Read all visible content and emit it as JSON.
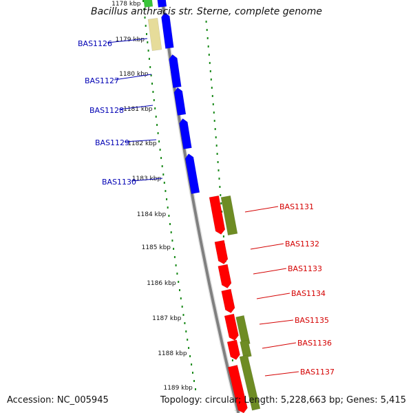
{
  "title": "Bacillus anthracis str. Sterne, complete genome",
  "accession": "Accession: NC_005945",
  "summary": "Topology: circular; Length: 5,228,663 bp; Genes: 5,415",
  "colors": {
    "backbone": "#808080",
    "forward_cds": "#0000ff",
    "reverse_cds": "#ff0000",
    "forward_other": "#e6dc9a",
    "reverse_other": "#6e8c24",
    "top_gene": "#38c438",
    "tick_ring": "#1a8a1a",
    "forward_label": "#0000b4",
    "reverse_label": "#d40000"
  },
  "ticks": [
    "1178 kbp",
    "1179 kbp",
    "1180 kbp",
    "1181 kbp",
    "1182 kbp",
    "1183 kbp",
    "1184 kbp",
    "1185 kbp",
    "1186 kbp",
    "1187 kbp",
    "1188 kbp",
    "1189 kbp"
  ],
  "forward_genes": [
    "BAS1126",
    "BAS1127",
    "BAS1128",
    "BAS1129",
    "BAS1130"
  ],
  "reverse_genes": [
    "BAS1131",
    "BAS1132",
    "BAS1133",
    "BAS1134",
    "BAS1135",
    "BAS1136",
    "BAS1137"
  ]
}
